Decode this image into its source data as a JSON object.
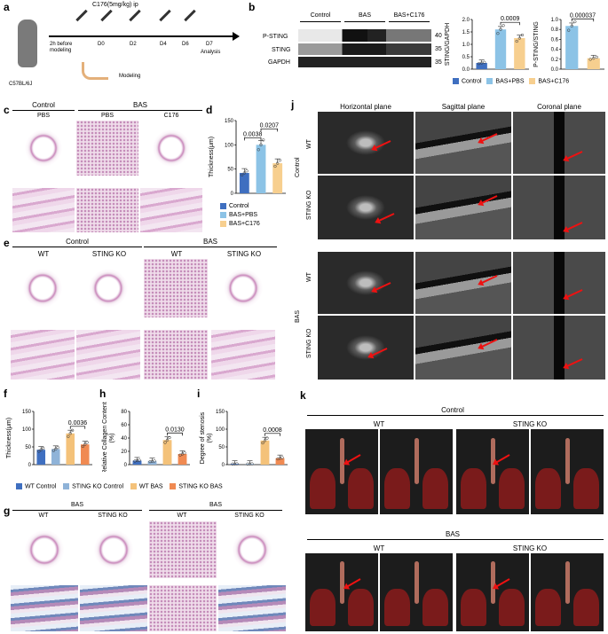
{
  "panels": {
    "a": "a",
    "b": "b",
    "c": "c",
    "d": "d",
    "e": "e",
    "f": "f",
    "g": "g",
    "h": "h",
    "i": "i",
    "j": "j",
    "k": "k"
  },
  "panel_a": {
    "dose": "C176(5mg/kg) ip",
    "timepoints": [
      "D0",
      "D2",
      "D4",
      "D6",
      "D7"
    ],
    "before": "2h before\nmodeling",
    "analysis": "Analysis",
    "modeling": "Modeling",
    "strain": "C57BL/6J"
  },
  "panel_b": {
    "groups": [
      "Control",
      "BAS",
      "BAS+C176"
    ],
    "bands": [
      "P-STING",
      "STING",
      "GAPDH"
    ],
    "mw": [
      "40",
      "35",
      "35"
    ]
  },
  "colors": {
    "control": "#3f6fc0",
    "bas_pbs": "#8cc3e6",
    "bas_c176": "#f7cf8f",
    "wt_control": "#3f6fc0",
    "ko_control": "#8fb3d8",
    "wt_bas": "#f4c27a",
    "ko_bas": "#f08a52"
  },
  "legend_b": [
    "Control",
    "BAS+PBS",
    "BAS+C176"
  ],
  "legend_d": [
    "Control",
    "BAS+PBS",
    "BAS+C176"
  ],
  "legend_fhi": [
    "WT Control",
    "STING KO Control",
    "WT BAS",
    "STING KO BAS"
  ],
  "panel_c": {
    "control": "Control",
    "bas": "BAS",
    "cols": [
      "PBS",
      "PBS",
      "C176"
    ]
  },
  "panel_e": {
    "control": "Control",
    "bas": "BAS",
    "cols": [
      "WT",
      "STING KO",
      "WT",
      "STING KO"
    ]
  },
  "panel_g": {
    "bas1": "BAS",
    "bas2": "BAS",
    "cols": [
      "WT",
      "STING KO",
      "WT",
      "STING KO"
    ]
  },
  "panel_j": {
    "planes": [
      "Horizontal plane",
      "Sagittal plane",
      "Coronal plane"
    ],
    "groups": [
      "Control",
      "BAS"
    ],
    "rows": [
      "WT",
      "STING KO",
      "WT",
      "STING KO"
    ]
  },
  "panel_k": {
    "control": "Control",
    "bas": "BAS",
    "cols": [
      "WT",
      "STING KO"
    ]
  },
  "chart_data": [
    {
      "id": "b1",
      "type": "bar",
      "ylabel": "STING/GAPDH",
      "categories": [
        "Control",
        "BAS+PBS",
        "BAS+C176"
      ],
      "values": [
        0.25,
        1.6,
        1.25
      ],
      "ylim": [
        0,
        2.0
      ],
      "yticks": [
        "0.0",
        "0.5",
        "1.0",
        "1.5",
        "2.0"
      ],
      "pvalues": [
        "0.0009"
      ]
    },
    {
      "id": "b2",
      "type": "bar",
      "ylabel": "P-STING/STING",
      "categories": [
        "BAS+PBS",
        "BAS+C176"
      ],
      "values": [
        0.87,
        0.22
      ],
      "ylim": [
        0,
        1.0
      ],
      "yticks": [
        "0.0",
        "0.2",
        "0.4",
        "0.6",
        "0.8",
        "1.0"
      ],
      "pvalues": [
        "0.000037"
      ]
    },
    {
      "id": "d",
      "type": "bar",
      "ylabel": "Thickness(μm)",
      "categories": [
        "Control",
        "BAS+PBS",
        "BAS+C176"
      ],
      "values": [
        42,
        100,
        62
      ],
      "ylim": [
        0,
        150
      ],
      "yticks": [
        "0",
        "50",
        "100",
        "150"
      ],
      "pvalues": [
        "0.0038",
        "0.0207"
      ]
    },
    {
      "id": "f",
      "type": "bar",
      "ylabel": "Thickness(μm)",
      "categories": [
        "WT Control",
        "STING KO Control",
        "WT BAS",
        "STING KO BAS"
      ],
      "values": [
        42,
        44,
        88,
        57
      ],
      "ylim": [
        0,
        150
      ],
      "yticks": [
        "0",
        "50",
        "100",
        "150"
      ],
      "pvalues": [
        "0.0036"
      ]
    },
    {
      "id": "h",
      "type": "bar",
      "ylabel": "Relative Collagen Content\n(%)",
      "categories": [
        "WT Control",
        "STING KO Control",
        "WT BAS",
        "STING KO BAS"
      ],
      "values": [
        6,
        5,
        37,
        16
      ],
      "ylim": [
        0,
        80
      ],
      "yticks": [
        "0",
        "20",
        "40",
        "60",
        "80"
      ],
      "pvalues": [
        "0.0130"
      ]
    },
    {
      "id": "i",
      "type": "bar",
      "ylabel": "Degree of stenosis\n(%)",
      "categories": [
        "WT Control",
        "STING KO Control",
        "WT BAS",
        "STING KO BAS"
      ],
      "values": [
        2,
        2,
        68,
        18
      ],
      "ylim": [
        0,
        150
      ],
      "yticks": [
        "0",
        "50",
        "100",
        "150"
      ],
      "pvalues": [
        "0.0008"
      ]
    }
  ]
}
